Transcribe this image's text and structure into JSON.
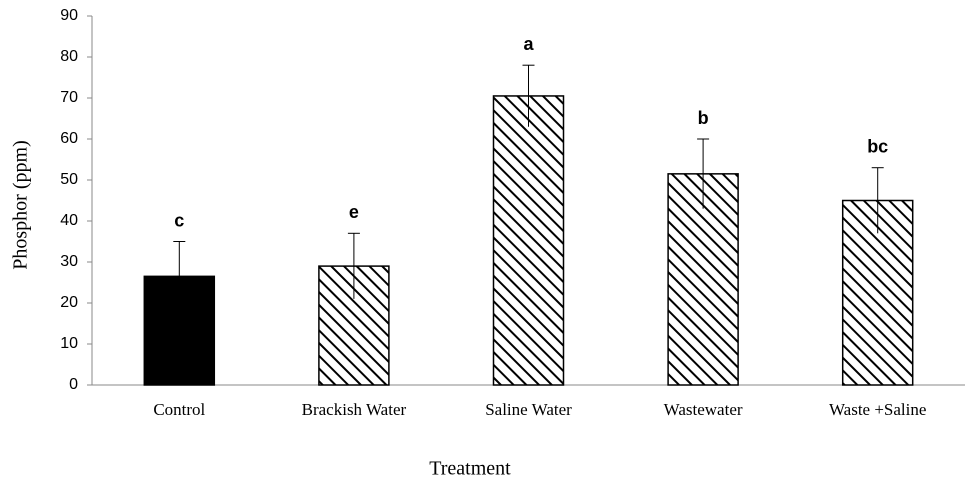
{
  "chart_data": {
    "type": "bar",
    "categories": [
      "Control",
      "Brackish Water",
      "Saline Water",
      "Wastewater",
      "Waste +Saline"
    ],
    "values": [
      26.5,
      29,
      70.5,
      51.5,
      45
    ],
    "errors": [
      8.5,
      8,
      7.5,
      8.5,
      8
    ],
    "annotations": [
      "c",
      "e",
      "a",
      "b",
      "bc"
    ],
    "fills": [
      "solid",
      "hatch",
      "hatch",
      "hatch",
      "hatch"
    ],
    "color": "#000000",
    "xlabel": "Treatment",
    "ylabel": "Phosphor (ppm)",
    "ylim": [
      0,
      90
    ],
    "yticks": [
      0,
      10,
      20,
      30,
      40,
      50,
      60,
      70,
      80,
      90
    ],
    "grid": false
  }
}
